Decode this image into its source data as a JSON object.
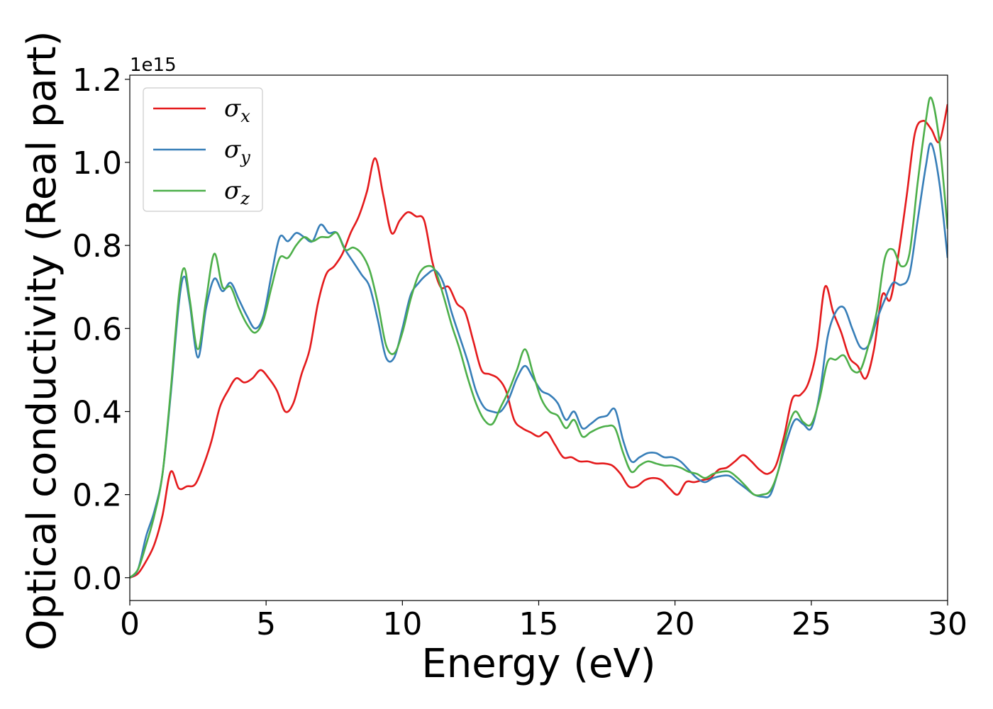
{
  "chart_data": {
    "type": "line",
    "xlabel": "Energy (eV)",
    "ylabel": "Optical conductivity (Real part)",
    "offset_text": "1e15",
    "xlim": [
      0,
      30
    ],
    "ylim": [
      -0.055,
      1.21
    ],
    "xticks": [
      0,
      5,
      10,
      15,
      20,
      25,
      30
    ],
    "xtick_labels": [
      "0",
      "5",
      "10",
      "15",
      "20",
      "25",
      "30"
    ],
    "yticks": [
      0.0,
      0.2,
      0.4,
      0.6,
      0.8,
      1.0,
      1.2
    ],
    "ytick_labels": [
      "0.0",
      "0.2",
      "0.4",
      "0.6",
      "0.8",
      "1.0",
      "1.2"
    ],
    "grid": false,
    "legend_position": "top-left",
    "series": [
      {
        "name": "σx",
        "symbol": "σ",
        "subscript": "x",
        "color": "#e41a1c",
        "points": [
          [
            0,
            0
          ],
          [
            0.3,
            0.01
          ],
          [
            0.6,
            0.04
          ],
          [
            0.9,
            0.08
          ],
          [
            1.2,
            0.15
          ],
          [
            1.5,
            0.255
          ],
          [
            1.8,
            0.215
          ],
          [
            2.1,
            0.22
          ],
          [
            2.4,
            0.225
          ],
          [
            2.7,
            0.27
          ],
          [
            3.0,
            0.33
          ],
          [
            3.3,
            0.41
          ],
          [
            3.6,
            0.45
          ],
          [
            3.9,
            0.48
          ],
          [
            4.2,
            0.47
          ],
          [
            4.5,
            0.48
          ],
          [
            4.8,
            0.5
          ],
          [
            5.1,
            0.48
          ],
          [
            5.4,
            0.45
          ],
          [
            5.7,
            0.4
          ],
          [
            6.0,
            0.42
          ],
          [
            6.3,
            0.49
          ],
          [
            6.6,
            0.55
          ],
          [
            6.9,
            0.66
          ],
          [
            7.2,
            0.73
          ],
          [
            7.5,
            0.75
          ],
          [
            7.8,
            0.78
          ],
          [
            8.1,
            0.83
          ],
          [
            8.4,
            0.87
          ],
          [
            8.7,
            0.93
          ],
          [
            9.0,
            1.01
          ],
          [
            9.3,
            0.92
          ],
          [
            9.6,
            0.83
          ],
          [
            9.9,
            0.86
          ],
          [
            10.2,
            0.88
          ],
          [
            10.5,
            0.87
          ],
          [
            10.8,
            0.86
          ],
          [
            11.1,
            0.76
          ],
          [
            11.4,
            0.7
          ],
          [
            11.7,
            0.7
          ],
          [
            12.0,
            0.66
          ],
          [
            12.3,
            0.64
          ],
          [
            12.6,
            0.57
          ],
          [
            12.9,
            0.5
          ],
          [
            13.2,
            0.49
          ],
          [
            13.5,
            0.48
          ],
          [
            13.8,
            0.45
          ],
          [
            14.1,
            0.38
          ],
          [
            14.4,
            0.36
          ],
          [
            14.7,
            0.35
          ],
          [
            15.0,
            0.34
          ],
          [
            15.3,
            0.35
          ],
          [
            15.6,
            0.32
          ],
          [
            15.9,
            0.29
          ],
          [
            16.2,
            0.29
          ],
          [
            16.5,
            0.28
          ],
          [
            16.8,
            0.28
          ],
          [
            17.1,
            0.275
          ],
          [
            17.4,
            0.275
          ],
          [
            17.7,
            0.27
          ],
          [
            18.0,
            0.25
          ],
          [
            18.3,
            0.22
          ],
          [
            18.6,
            0.22
          ],
          [
            18.9,
            0.235
          ],
          [
            19.2,
            0.24
          ],
          [
            19.5,
            0.235
          ],
          [
            19.8,
            0.215
          ],
          [
            20.1,
            0.2
          ],
          [
            20.4,
            0.23
          ],
          [
            20.7,
            0.23
          ],
          [
            21.0,
            0.235
          ],
          [
            21.3,
            0.24
          ],
          [
            21.6,
            0.26
          ],
          [
            21.9,
            0.265
          ],
          [
            22.2,
            0.28
          ],
          [
            22.5,
            0.295
          ],
          [
            22.8,
            0.28
          ],
          [
            23.1,
            0.26
          ],
          [
            23.4,
            0.25
          ],
          [
            23.7,
            0.27
          ],
          [
            24.0,
            0.34
          ],
          [
            24.3,
            0.43
          ],
          [
            24.6,
            0.44
          ],
          [
            24.9,
            0.47
          ],
          [
            25.2,
            0.55
          ],
          [
            25.5,
            0.7
          ],
          [
            25.8,
            0.64
          ],
          [
            26.1,
            0.59
          ],
          [
            26.4,
            0.53
          ],
          [
            26.7,
            0.51
          ],
          [
            27.0,
            0.48
          ],
          [
            27.3,
            0.55
          ],
          [
            27.6,
            0.68
          ],
          [
            27.9,
            0.67
          ],
          [
            28.2,
            0.78
          ],
          [
            28.5,
            0.92
          ],
          [
            28.8,
            1.07
          ],
          [
            29.1,
            1.1
          ],
          [
            29.4,
            1.08
          ],
          [
            29.7,
            1.05
          ],
          [
            30.0,
            1.14
          ]
        ]
      },
      {
        "name": "σy",
        "symbol": "σ",
        "subscript": "y",
        "color": "#377eb8",
        "points": [
          [
            0,
            0
          ],
          [
            0.3,
            0.02
          ],
          [
            0.6,
            0.1
          ],
          [
            0.9,
            0.16
          ],
          [
            1.2,
            0.25
          ],
          [
            1.5,
            0.44
          ],
          [
            1.8,
            0.66
          ],
          [
            2.0,
            0.725
          ],
          [
            2.2,
            0.66
          ],
          [
            2.5,
            0.53
          ],
          [
            2.8,
            0.65
          ],
          [
            3.1,
            0.72
          ],
          [
            3.4,
            0.69
          ],
          [
            3.7,
            0.71
          ],
          [
            4.0,
            0.67
          ],
          [
            4.3,
            0.63
          ],
          [
            4.6,
            0.6
          ],
          [
            4.9,
            0.63
          ],
          [
            5.2,
            0.73
          ],
          [
            5.5,
            0.82
          ],
          [
            5.8,
            0.81
          ],
          [
            6.1,
            0.83
          ],
          [
            6.4,
            0.82
          ],
          [
            6.7,
            0.81
          ],
          [
            7.0,
            0.85
          ],
          [
            7.3,
            0.83
          ],
          [
            7.6,
            0.83
          ],
          [
            7.9,
            0.79
          ],
          [
            8.2,
            0.76
          ],
          [
            8.5,
            0.73
          ],
          [
            8.8,
            0.7
          ],
          [
            9.1,
            0.62
          ],
          [
            9.4,
            0.53
          ],
          [
            9.7,
            0.53
          ],
          [
            10.0,
            0.6
          ],
          [
            10.3,
            0.68
          ],
          [
            10.6,
            0.71
          ],
          [
            10.9,
            0.73
          ],
          [
            11.2,
            0.74
          ],
          [
            11.5,
            0.71
          ],
          [
            11.8,
            0.64
          ],
          [
            12.1,
            0.58
          ],
          [
            12.4,
            0.52
          ],
          [
            12.7,
            0.45
          ],
          [
            13.0,
            0.41
          ],
          [
            13.3,
            0.4
          ],
          [
            13.6,
            0.4
          ],
          [
            13.9,
            0.43
          ],
          [
            14.2,
            0.48
          ],
          [
            14.5,
            0.51
          ],
          [
            14.8,
            0.48
          ],
          [
            15.1,
            0.45
          ],
          [
            15.4,
            0.44
          ],
          [
            15.7,
            0.42
          ],
          [
            16.0,
            0.38
          ],
          [
            16.3,
            0.4
          ],
          [
            16.6,
            0.36
          ],
          [
            16.9,
            0.37
          ],
          [
            17.2,
            0.385
          ],
          [
            17.5,
            0.39
          ],
          [
            17.8,
            0.405
          ],
          [
            18.1,
            0.33
          ],
          [
            18.4,
            0.28
          ],
          [
            18.7,
            0.29
          ],
          [
            19.0,
            0.3
          ],
          [
            19.3,
            0.3
          ],
          [
            19.6,
            0.29
          ],
          [
            19.9,
            0.29
          ],
          [
            20.2,
            0.28
          ],
          [
            20.5,
            0.26
          ],
          [
            20.8,
            0.24
          ],
          [
            21.1,
            0.23
          ],
          [
            21.4,
            0.24
          ],
          [
            21.7,
            0.245
          ],
          [
            22.0,
            0.245
          ],
          [
            22.3,
            0.23
          ],
          [
            22.6,
            0.215
          ],
          [
            22.9,
            0.2
          ],
          [
            23.2,
            0.195
          ],
          [
            23.5,
            0.2
          ],
          [
            23.8,
            0.26
          ],
          [
            24.1,
            0.33
          ],
          [
            24.4,
            0.38
          ],
          [
            24.7,
            0.37
          ],
          [
            25.0,
            0.36
          ],
          [
            25.3,
            0.44
          ],
          [
            25.6,
            0.58
          ],
          [
            25.9,
            0.64
          ],
          [
            26.2,
            0.65
          ],
          [
            26.5,
            0.6
          ],
          [
            26.8,
            0.555
          ],
          [
            27.1,
            0.56
          ],
          [
            27.4,
            0.62
          ],
          [
            27.7,
            0.67
          ],
          [
            28.0,
            0.71
          ],
          [
            28.3,
            0.705
          ],
          [
            28.6,
            0.73
          ],
          [
            28.9,
            0.86
          ],
          [
            29.2,
            0.99
          ],
          [
            29.4,
            1.045
          ],
          [
            29.7,
            0.95
          ],
          [
            30.0,
            0.77
          ]
        ]
      },
      {
        "name": "σz",
        "symbol": "σ",
        "subscript": "z",
        "color": "#4daf4a",
        "points": [
          [
            0,
            0
          ],
          [
            0.3,
            0.02
          ],
          [
            0.6,
            0.08
          ],
          [
            0.9,
            0.15
          ],
          [
            1.2,
            0.25
          ],
          [
            1.5,
            0.45
          ],
          [
            1.8,
            0.68
          ],
          [
            2.0,
            0.745
          ],
          [
            2.2,
            0.67
          ],
          [
            2.5,
            0.55
          ],
          [
            2.8,
            0.67
          ],
          [
            3.1,
            0.78
          ],
          [
            3.4,
            0.7
          ],
          [
            3.7,
            0.7
          ],
          [
            4.0,
            0.65
          ],
          [
            4.3,
            0.61
          ],
          [
            4.6,
            0.59
          ],
          [
            4.9,
            0.62
          ],
          [
            5.2,
            0.7
          ],
          [
            5.5,
            0.77
          ],
          [
            5.8,
            0.77
          ],
          [
            6.1,
            0.8
          ],
          [
            6.4,
            0.82
          ],
          [
            6.7,
            0.81
          ],
          [
            7.0,
            0.82
          ],
          [
            7.3,
            0.82
          ],
          [
            7.6,
            0.83
          ],
          [
            7.9,
            0.79
          ],
          [
            8.2,
            0.795
          ],
          [
            8.5,
            0.78
          ],
          [
            8.8,
            0.74
          ],
          [
            9.1,
            0.66
          ],
          [
            9.4,
            0.56
          ],
          [
            9.7,
            0.54
          ],
          [
            10.0,
            0.59
          ],
          [
            10.3,
            0.67
          ],
          [
            10.6,
            0.73
          ],
          [
            10.9,
            0.75
          ],
          [
            11.2,
            0.74
          ],
          [
            11.5,
            0.68
          ],
          [
            11.8,
            0.61
          ],
          [
            12.1,
            0.55
          ],
          [
            12.4,
            0.48
          ],
          [
            12.7,
            0.42
          ],
          [
            13.0,
            0.38
          ],
          [
            13.3,
            0.37
          ],
          [
            13.6,
            0.41
          ],
          [
            13.9,
            0.45
          ],
          [
            14.2,
            0.5
          ],
          [
            14.5,
            0.55
          ],
          [
            14.8,
            0.49
          ],
          [
            15.1,
            0.43
          ],
          [
            15.4,
            0.4
          ],
          [
            15.7,
            0.39
          ],
          [
            16.0,
            0.36
          ],
          [
            16.3,
            0.38
          ],
          [
            16.6,
            0.34
          ],
          [
            16.9,
            0.35
          ],
          [
            17.2,
            0.36
          ],
          [
            17.5,
            0.365
          ],
          [
            17.8,
            0.36
          ],
          [
            18.1,
            0.3
          ],
          [
            18.4,
            0.255
          ],
          [
            18.7,
            0.27
          ],
          [
            19.0,
            0.28
          ],
          [
            19.3,
            0.275
          ],
          [
            19.6,
            0.27
          ],
          [
            19.9,
            0.27
          ],
          [
            20.2,
            0.265
          ],
          [
            20.5,
            0.255
          ],
          [
            20.8,
            0.25
          ],
          [
            21.1,
            0.24
          ],
          [
            21.4,
            0.25
          ],
          [
            21.7,
            0.255
          ],
          [
            22.0,
            0.255
          ],
          [
            22.3,
            0.24
          ],
          [
            22.6,
            0.22
          ],
          [
            22.9,
            0.2
          ],
          [
            23.2,
            0.2
          ],
          [
            23.5,
            0.21
          ],
          [
            23.8,
            0.26
          ],
          [
            24.1,
            0.35
          ],
          [
            24.4,
            0.4
          ],
          [
            24.7,
            0.375
          ],
          [
            25.0,
            0.37
          ],
          [
            25.3,
            0.43
          ],
          [
            25.6,
            0.52
          ],
          [
            25.9,
            0.525
          ],
          [
            26.2,
            0.535
          ],
          [
            26.5,
            0.5
          ],
          [
            26.8,
            0.5
          ],
          [
            27.1,
            0.56
          ],
          [
            27.4,
            0.64
          ],
          [
            27.7,
            0.77
          ],
          [
            28.0,
            0.79
          ],
          [
            28.3,
            0.75
          ],
          [
            28.6,
            0.78
          ],
          [
            28.9,
            0.95
          ],
          [
            29.2,
            1.1
          ],
          [
            29.4,
            1.155
          ],
          [
            29.7,
            1.05
          ],
          [
            30.0,
            0.84
          ]
        ]
      }
    ]
  }
}
